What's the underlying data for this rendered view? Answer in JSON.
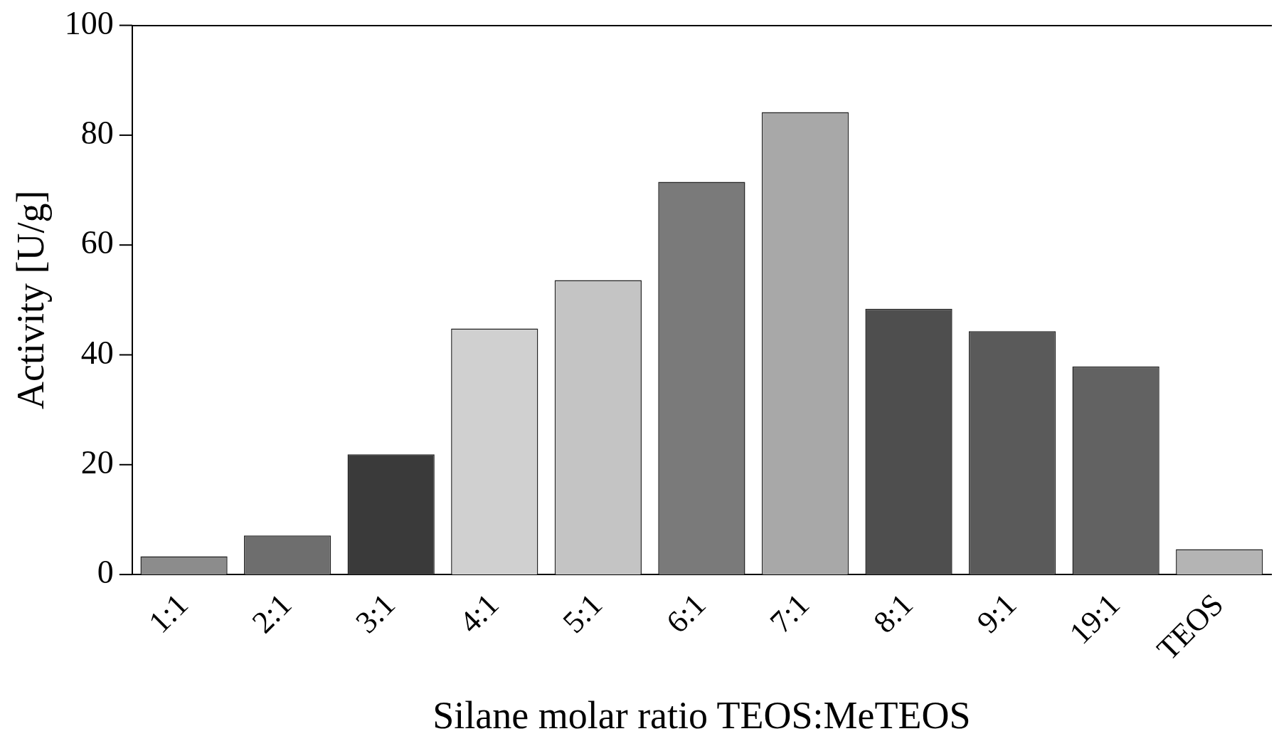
{
  "chart_data": {
    "type": "bar",
    "xlabel": "Silane molar ratio TEOS:MeTEOS",
    "ylabel": "Activity [U/g]",
    "categories": [
      "1:1",
      "2:1",
      "3:1",
      "4:1",
      "5:1",
      "6:1",
      "7:1",
      "8:1",
      "9:1",
      "19:1",
      "TEOS"
    ],
    "values": [
      3.3,
      7.1,
      21.9,
      44.8,
      53.6,
      71.5,
      84.2,
      48.4,
      44.3,
      37.9,
      4.6
    ],
    "colors": [
      "#8c8c8c",
      "#6e6e6e",
      "#3a3a3a",
      "#d0d0d0",
      "#c4c4c4",
      "#7a7a7a",
      "#a8a8a8",
      "#4e4e4e",
      "#5a5a5a",
      "#626262",
      "#b4b4b4"
    ],
    "ylim": [
      0,
      100
    ],
    "yticks": [
      0,
      20,
      40,
      60,
      80,
      100
    ],
    "grid": false,
    "legend": false
  }
}
